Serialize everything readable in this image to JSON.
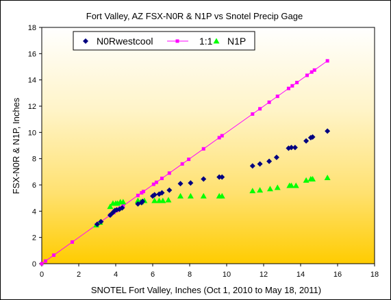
{
  "chart_data": {
    "type": "scatter",
    "title": "Fort Valley, AZ FSX-N0R & N1P  vs Snotel Precip Gage",
    "xlabel": "SNOTEL Fort Valley, Inches (Oct 1, 2010 to May 18, 2011)",
    "ylabel": "FSX-N0R & N1P, Inches",
    "xlim": [
      0,
      18
    ],
    "ylim": [
      0,
      18
    ],
    "x_ticks": [
      0,
      2,
      4,
      6,
      8,
      10,
      12,
      14,
      16,
      18
    ],
    "y_ticks": [
      0,
      2,
      4,
      6,
      8,
      10,
      12,
      14,
      16,
      18
    ],
    "grid": "none",
    "background": "yellow vertical gradient",
    "legend_position": "top-left inside plot",
    "series": [
      {
        "name": "N0Rwestcool",
        "marker": "diamond",
        "color": "#000080",
        "points": [
          [
            3.0,
            3.0
          ],
          [
            3.2,
            3.2
          ],
          [
            3.7,
            3.7
          ],
          [
            3.85,
            3.9
          ],
          [
            3.95,
            4.05
          ],
          [
            4.05,
            4.1
          ],
          [
            4.2,
            4.15
          ],
          [
            4.35,
            4.25
          ],
          [
            5.2,
            4.55
          ],
          [
            5.4,
            4.65
          ],
          [
            5.45,
            4.75
          ],
          [
            6.0,
            5.15
          ],
          [
            6.1,
            5.25
          ],
          [
            6.35,
            5.3
          ],
          [
            6.5,
            5.4
          ],
          [
            6.9,
            5.6
          ],
          [
            7.5,
            6.1
          ],
          [
            8.05,
            6.15
          ],
          [
            8.75,
            6.45
          ],
          [
            9.6,
            6.6
          ],
          [
            9.75,
            6.6
          ],
          [
            11.4,
            7.45
          ],
          [
            11.8,
            7.6
          ],
          [
            12.3,
            7.8
          ],
          [
            12.7,
            8.1
          ],
          [
            13.35,
            8.8
          ],
          [
            13.5,
            8.85
          ],
          [
            13.7,
            8.85
          ],
          [
            14.3,
            9.35
          ],
          [
            14.55,
            9.6
          ],
          [
            14.65,
            9.65
          ],
          [
            15.45,
            10.1
          ]
        ]
      },
      {
        "name": "1:1",
        "marker": "square",
        "color": "#ff00ff",
        "x": [
          0,
          0.2,
          0.65,
          1.65,
          2.95,
          3.1,
          3.7,
          3.9,
          4.05,
          4.15,
          4.25,
          4.4,
          5.2,
          5.4,
          5.5,
          6.05,
          6.2,
          6.5,
          6.9,
          7.6,
          7.95,
          8.75,
          9.6,
          9.75,
          11.4,
          11.8,
          12.3,
          12.75,
          13.35,
          13.55,
          13.8,
          14.35,
          14.6,
          14.75,
          15.45
        ],
        "y": [
          0,
          0.2,
          0.65,
          1.65,
          2.95,
          3.1,
          3.7,
          3.9,
          4.05,
          4.15,
          4.25,
          4.4,
          5.2,
          5.4,
          5.5,
          6.05,
          6.2,
          6.5,
          6.9,
          7.6,
          7.95,
          8.75,
          9.6,
          9.75,
          11.4,
          11.8,
          12.3,
          12.75,
          13.35,
          13.55,
          13.8,
          14.35,
          14.6,
          14.75,
          15.45
        ]
      },
      {
        "name": "N1P",
        "marker": "triangle",
        "color": "#00ff00",
        "points": [
          [
            2.95,
            2.95
          ],
          [
            3.15,
            3.15
          ],
          [
            3.7,
            4.35
          ],
          [
            3.85,
            4.6
          ],
          [
            4.0,
            4.6
          ],
          [
            4.1,
            4.6
          ],
          [
            4.25,
            4.7
          ],
          [
            4.4,
            4.7
          ],
          [
            5.2,
            4.8
          ],
          [
            5.35,
            4.7
          ],
          [
            5.55,
            4.8
          ],
          [
            6.1,
            4.8
          ],
          [
            6.35,
            4.8
          ],
          [
            6.55,
            4.8
          ],
          [
            6.85,
            4.85
          ],
          [
            7.5,
            5.15
          ],
          [
            8.05,
            5.15
          ],
          [
            8.75,
            5.15
          ],
          [
            9.6,
            5.15
          ],
          [
            9.75,
            5.15
          ],
          [
            11.4,
            5.55
          ],
          [
            11.8,
            5.6
          ],
          [
            12.35,
            5.7
          ],
          [
            12.75,
            5.8
          ],
          [
            13.4,
            5.95
          ],
          [
            13.5,
            5.95
          ],
          [
            13.75,
            5.95
          ],
          [
            14.3,
            6.35
          ],
          [
            14.55,
            6.45
          ],
          [
            14.65,
            6.45
          ],
          [
            15.45,
            6.55
          ]
        ]
      }
    ]
  }
}
